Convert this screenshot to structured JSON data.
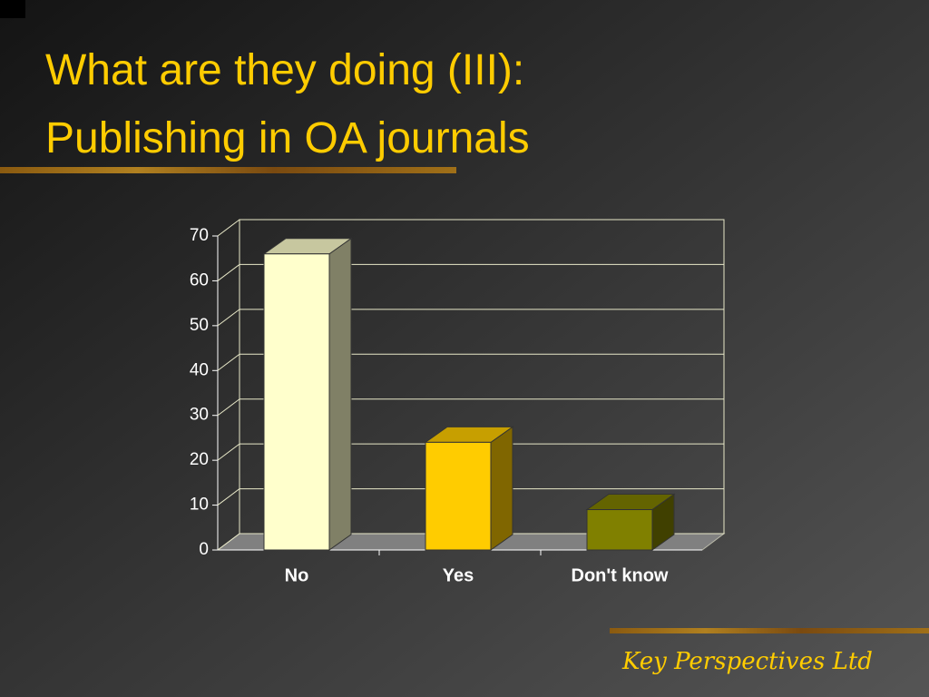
{
  "chart_data": {
    "type": "bar3d",
    "title": [
      "What are they doing (III):",
      "Publishing in OA journals"
    ],
    "categories": [
      "No",
      "Yes",
      "Don't know"
    ],
    "values": [
      66,
      24,
      9
    ],
    "colors": [
      "#ffffcc",
      "#ffcc00",
      "#808000"
    ],
    "ylim": [
      0,
      70
    ],
    "yticks": [
      0,
      10,
      20,
      30,
      40,
      50,
      60,
      70
    ],
    "grid": true
  },
  "footer": "Key Perspectives Ltd"
}
